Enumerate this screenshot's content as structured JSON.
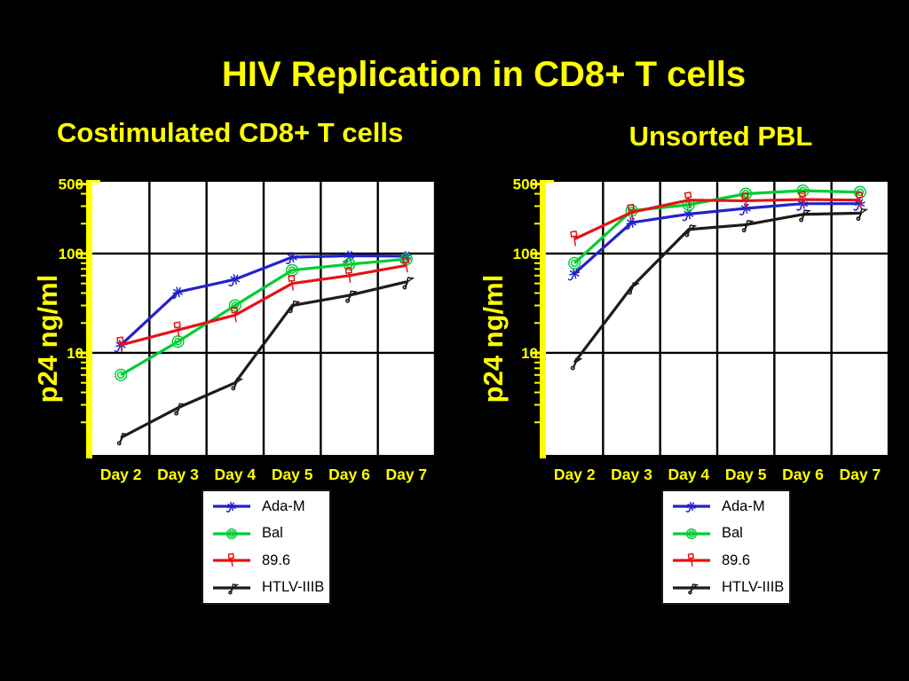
{
  "slide": {
    "title": "HIV Replication in CD8+ T cells",
    "background": "#000000",
    "accent": "#ffff00"
  },
  "chart_data": [
    {
      "type": "line",
      "title": "Costimulated CD8+ T cells",
      "ylabel": "p24 ng/ml",
      "xlabel": "",
      "categories": [
        "Day 2",
        "Day 3",
        "Day 4",
        "Day 5",
        "Day 6",
        "Day 7"
      ],
      "y_scale": "log",
      "y_ticks": [
        500,
        100,
        10
      ],
      "y_gridlines": [
        100,
        10
      ],
      "ylim": [
        0.94,
        528
      ],
      "grid": true,
      "legend_position": "below",
      "series": [
        {
          "name": "Ada-M",
          "color": "#2323cb",
          "marker": "star",
          "values": [
            12,
            41,
            55,
            92,
            95,
            94
          ]
        },
        {
          "name": "Bal",
          "color": "#00cd33",
          "marker": "double-circle",
          "values": [
            6,
            13,
            30,
            68,
            78,
            88
          ]
        },
        {
          "name": "89.6",
          "color": "#e41414",
          "marker": "flag-square",
          "values": [
            12,
            17,
            24,
            50,
            60,
            76
          ]
        },
        {
          "name": "HTLV-IIIB",
          "color": "#1c1c1c",
          "marker": "flag",
          "values": [
            1.4,
            2.8,
            5,
            30,
            38,
            52
          ]
        }
      ]
    },
    {
      "type": "line",
      "title": "Unsorted PBL",
      "ylabel": "p24 ng/ml",
      "xlabel": "",
      "categories": [
        "Day 2",
        "Day 3",
        "Day 4",
        "Day 5",
        "Day 6",
        "Day 7"
      ],
      "y_scale": "log",
      "y_ticks": [
        500,
        100,
        10
      ],
      "y_gridlines": [
        100,
        10
      ],
      "ylim": [
        0.94,
        528
      ],
      "grid": true,
      "legend_position": "below",
      "series": [
        {
          "name": "Ada-M",
          "color": "#2323cb",
          "marker": "star",
          "values": [
            63,
            205,
            250,
            285,
            318,
            318
          ]
        },
        {
          "name": "Bal",
          "color": "#00cd33",
          "marker": "double-circle",
          "values": [
            80,
            270,
            310,
            400,
            430,
            415
          ]
        },
        {
          "name": "89.6",
          "color": "#e41414",
          "marker": "flag-square",
          "values": [
            140,
            260,
            345,
            340,
            350,
            345
          ]
        },
        {
          "name": "HTLV-IIIB",
          "color": "#1c1c1c",
          "marker": "flag",
          "values": [
            8,
            46,
            175,
            195,
            248,
            255
          ]
        }
      ]
    }
  ],
  "legend": {
    "items": [
      {
        "label": "Ada-M",
        "color": "#2323cb",
        "marker": "star"
      },
      {
        "label": "Bal",
        "color": "#00cd33",
        "marker": "double-circle"
      },
      {
        "label": "89.6",
        "color": "#e41414",
        "marker": "flag-square"
      },
      {
        "label": "HTLV-IIIB",
        "color": "#1c1c1c",
        "marker": "flag"
      }
    ]
  }
}
